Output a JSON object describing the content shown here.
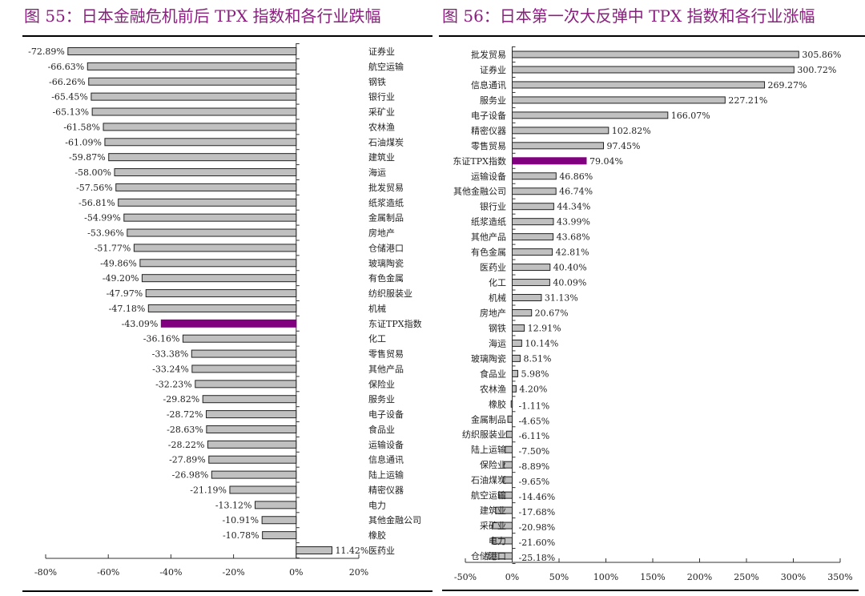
{
  "colors": {
    "bar": "#c0c0c0",
    "highlight": "#800080",
    "title": "#8a1f7f"
  },
  "chart_data": [
    {
      "type": "bar",
      "orientation": "horizontal",
      "title": "图 55：日本金融危机前后 TPX 指数和各行业跌幅",
      "xlim": [
        -80,
        20
      ],
      "xticks": [
        -80,
        -60,
        -40,
        -20,
        0,
        20
      ],
      "xtick_labels": [
        "-80%",
        "-60%",
        "-40%",
        "-20%",
        "0%",
        "20%"
      ],
      "highlight": "东证TPX指数",
      "categories": [
        "证券业",
        "航空运输",
        "钢铁",
        "银行业",
        "采矿业",
        "农林渔",
        "石油煤炭",
        "建筑业",
        "海运",
        "批发贸易",
        "纸浆造纸",
        "金属制品",
        "房地产",
        "仓储港口",
        "玻璃陶瓷",
        "有色金属",
        "纺织服装业",
        "机械",
        "东证TPX指数",
        "化工",
        "零售贸易",
        "其他产品",
        "保险业",
        "服务业",
        "电子设备",
        "食品业",
        "运输设备",
        "信息通讯",
        "陆上运输",
        "精密仪器",
        "电力",
        "其他金融公司",
        "橡胶",
        "医药业"
      ],
      "values": [
        -72.89,
        -66.63,
        -66.26,
        -65.45,
        -65.13,
        -61.58,
        -61.09,
        -59.87,
        -58.0,
        -57.56,
        -56.81,
        -54.99,
        -53.96,
        -51.77,
        -49.86,
        -49.2,
        -47.97,
        -47.18,
        -43.09,
        -36.16,
        -33.38,
        -33.24,
        -32.23,
        -29.82,
        -28.72,
        -28.63,
        -28.22,
        -27.89,
        -26.98,
        -21.19,
        -13.12,
        -10.91,
        -10.78,
        11.42
      ],
      "value_labels": [
        "-72.89%",
        "-66.63%",
        "-66.26%",
        "-65.45%",
        "-65.13%",
        "-61.58%",
        "-61.09%",
        "-59.87%",
        "-58.00%",
        "-57.56%",
        "-56.81%",
        "-54.99%",
        "-53.96%",
        "-51.77%",
        "-49.86%",
        "-49.20%",
        "-47.97%",
        "-47.18%",
        "-43.09%",
        "-36.16%",
        "-33.38%",
        "-33.24%",
        "-32.23%",
        "-29.82%",
        "-28.72%",
        "-28.63%",
        "-28.22%",
        "-27.89%",
        "-26.98%",
        "-21.19%",
        "-13.12%",
        "-10.91%",
        "-10.78%",
        "11.42%"
      ]
    },
    {
      "type": "bar",
      "orientation": "horizontal",
      "title": "图 56：日本第一次大反弹中 TPX 指数和各行业涨幅",
      "xlim": [
        -50,
        350
      ],
      "xticks": [
        -50,
        0,
        50,
        100,
        150,
        200,
        250,
        300,
        350
      ],
      "xtick_labels": [
        "-50%",
        "0%",
        "50%",
        "100%",
        "150%",
        "200%",
        "250%",
        "300%",
        "350%"
      ],
      "highlight": "东证TPX指数",
      "categories": [
        "批发贸易",
        "证券业",
        "信息通讯",
        "服务业",
        "电子设备",
        "精密仪器",
        "零售贸易",
        "东证TPX指数",
        "运输设备",
        "其他金融公司",
        "银行业",
        "纸浆造纸",
        "其他产品",
        "有色金属",
        "医药业",
        "化工",
        "机械",
        "房地产",
        "钢铁",
        "海运",
        "玻璃陶瓷",
        "食品业",
        "农林渔",
        "橡胶",
        "金属制品",
        "纺织服装业",
        "陆上运输",
        "保险业",
        "石油煤炭",
        "航空运输",
        "建筑业",
        "采矿业",
        "电力",
        "仓储港口"
      ],
      "values": [
        305.86,
        300.72,
        269.27,
        227.21,
        166.07,
        102.82,
        97.45,
        79.04,
        46.86,
        46.74,
        44.34,
        43.99,
        43.68,
        42.81,
        40.4,
        40.09,
        31.13,
        20.67,
        12.91,
        10.14,
        8.51,
        5.98,
        4.2,
        -1.11,
        -4.65,
        -6.11,
        -7.5,
        -8.89,
        -9.65,
        -14.46,
        -17.68,
        -20.98,
        -21.6,
        -25.18
      ],
      "value_labels": [
        "305.86%",
        "300.72%",
        "269.27%",
        "227.21%",
        "166.07%",
        "102.82%",
        "97.45%",
        "79.04%",
        "46.86%",
        "46.74%",
        "44.34%",
        "43.99%",
        "43.68%",
        "42.81%",
        "40.40%",
        "40.09%",
        "31.13%",
        "20.67%",
        "12.91%",
        "10.14%",
        "8.51%",
        "5.98%",
        "4.20%",
        "-1.11%",
        "-4.65%",
        "-6.11%",
        "-7.50%",
        "-8.89%",
        "-9.65%",
        "-14.46%",
        "-17.68%",
        "-20.98%",
        "-21.60%",
        "-25.18%"
      ]
    }
  ]
}
